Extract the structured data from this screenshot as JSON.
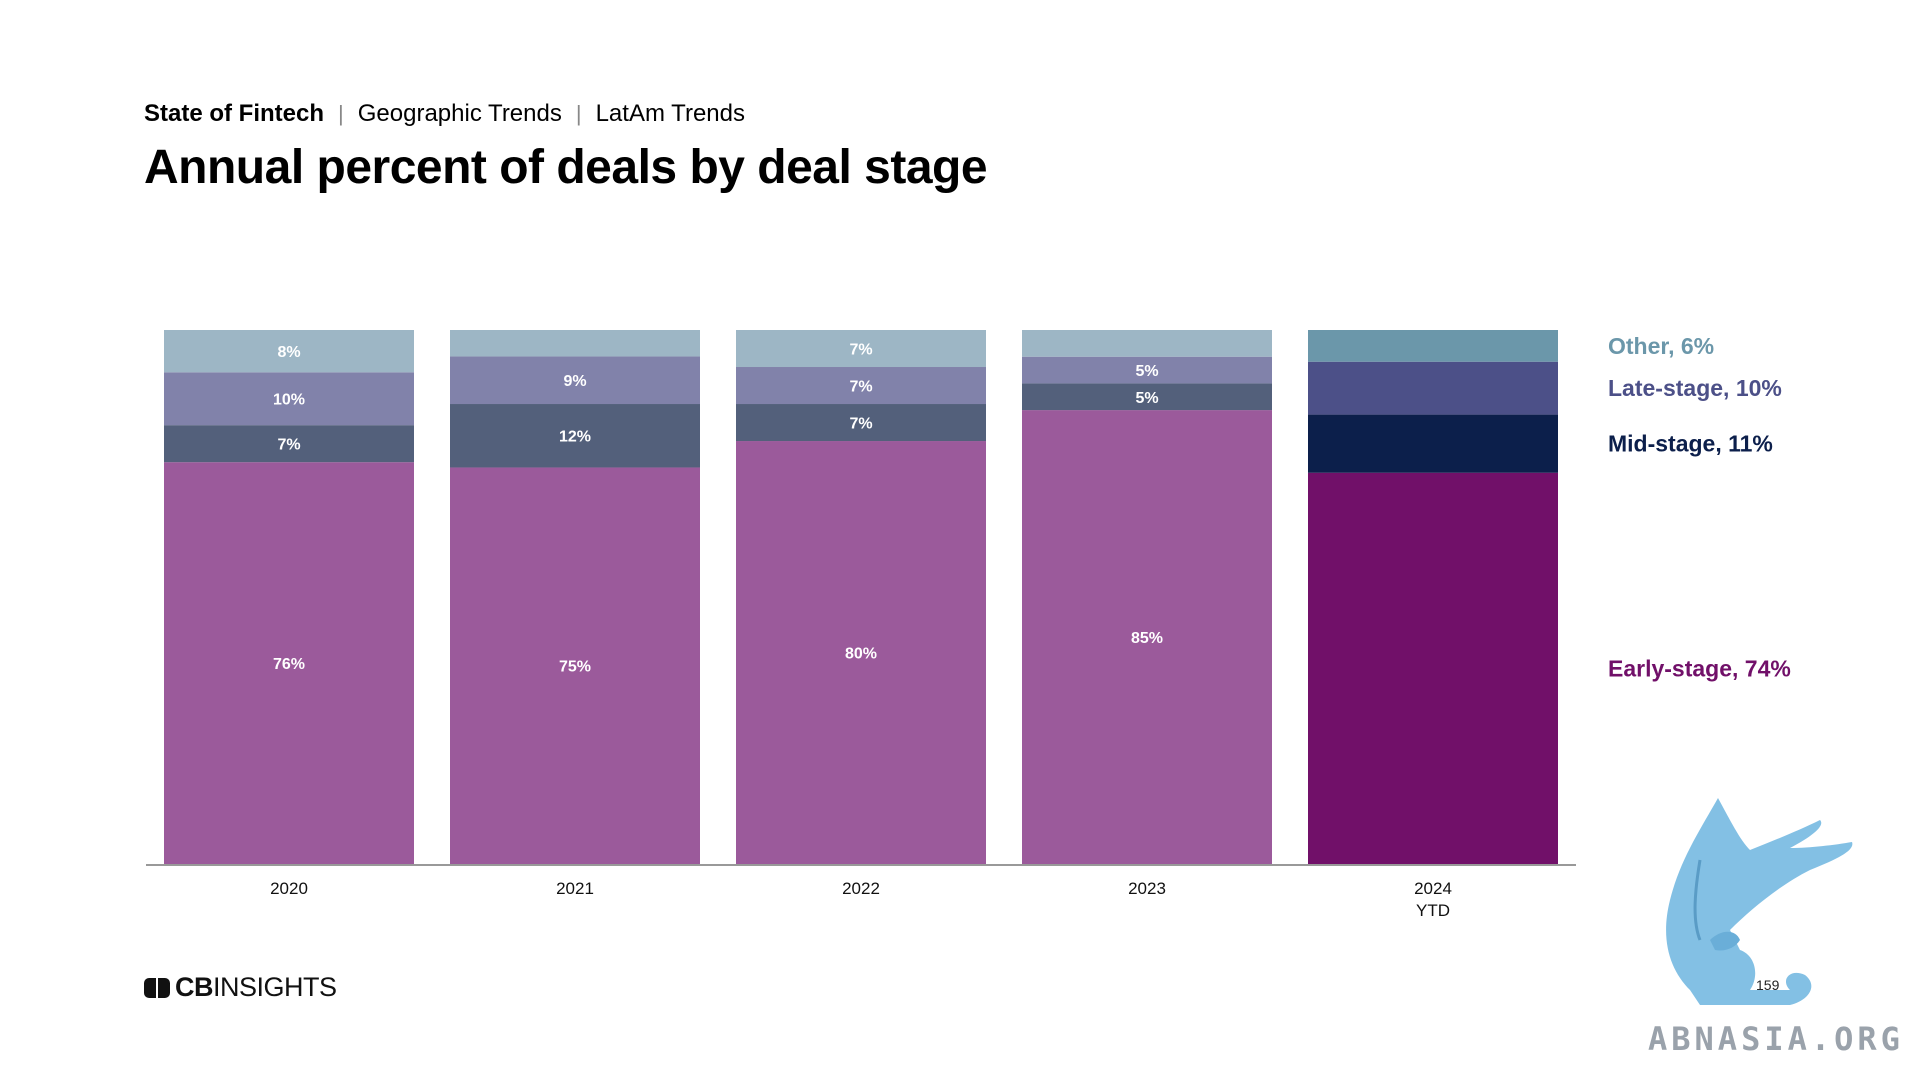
{
  "header": {
    "breadcrumb": [
      "State of Fintech",
      "Geographic Trends",
      "LatAm Trends"
    ],
    "title": "Annual percent of deals by deal stage"
  },
  "chart_data": {
    "type": "bar",
    "stacked": true,
    "normalized_percent": true,
    "categories": [
      "2020",
      "2021",
      "2022",
      "2023",
      "2024\nYTD"
    ],
    "series": [
      {
        "name": "Early-stage",
        "values": [
          76,
          75,
          80,
          85,
          74
        ],
        "labels": [
          "76%",
          "75%",
          "80%",
          "85%",
          ""
        ],
        "colors": [
          "#9b5a9b",
          "#9b5a9b",
          "#9b5a9b",
          "#9b5a9b",
          "#711069"
        ]
      },
      {
        "name": "Mid-stage",
        "values": [
          7,
          12,
          7,
          5,
          11
        ],
        "labels": [
          "7%",
          "12%",
          "7%",
          "5%",
          ""
        ],
        "colors": [
          "#53607b",
          "#53607b",
          "#53607b",
          "#53607b",
          "#0c1f4b"
        ]
      },
      {
        "name": "Late-stage",
        "values": [
          10,
          9,
          7,
          5,
          10
        ],
        "labels": [
          "10%",
          "9%",
          "7%",
          "5%",
          ""
        ],
        "colors": [
          "#8182aa",
          "#8182aa",
          "#8182aa",
          "#8182aa",
          "#4c5088"
        ]
      },
      {
        "name": "Other",
        "values": [
          8,
          5,
          7,
          5,
          6
        ],
        "labels": [
          "8%",
          "",
          "7%",
          "",
          ""
        ],
        "colors": [
          "#9db6c5",
          "#9db6c5",
          "#9db6c5",
          "#9db6c5",
          "#6b97aa"
        ]
      }
    ],
    "legend": [
      {
        "text": "Other, 6%",
        "color": "#6b97aa"
      },
      {
        "text": "Late-stage, 10%",
        "color": "#4c5088"
      },
      {
        "text": "Mid-stage, 11%",
        "color": "#0c1f4b"
      },
      {
        "text": "Early-stage, 74%",
        "color": "#711069"
      }
    ],
    "legend_position": "right",
    "ylim": [
      0,
      100
    ],
    "grid": false
  },
  "footer": {
    "logo_text_bold": "CB",
    "logo_text": "INSIGHTS",
    "page_number": "159",
    "watermark_text": "ABNASIA.ORG"
  }
}
